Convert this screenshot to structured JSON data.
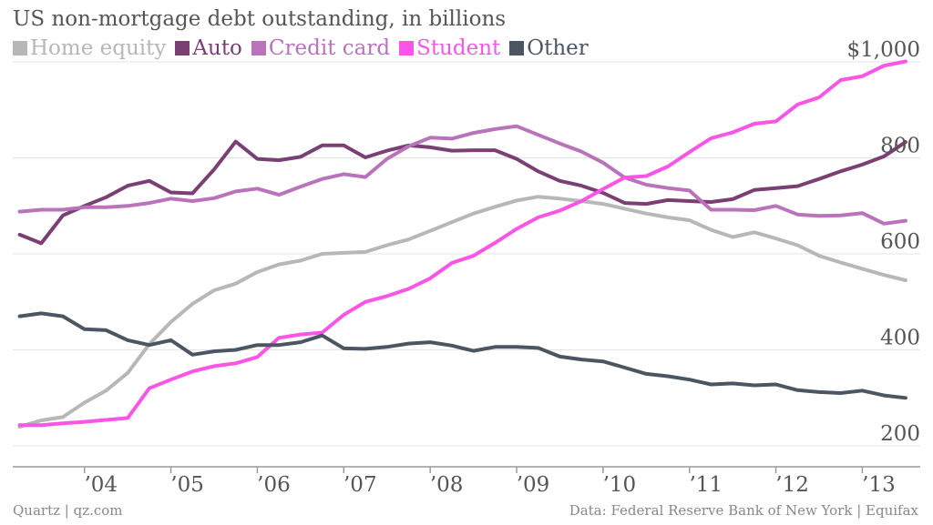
{
  "chart_data": {
    "type": "line",
    "title": "US non-mortgage debt outstanding, in billions",
    "xlabel": "",
    "ylabel": "",
    "x_tick_labels": [
      "’04",
      "’05",
      "’06",
      "’07",
      "’08",
      "’09",
      "’10",
      "’11",
      "’12",
      "’13"
    ],
    "x_tick_positions": [
      2004,
      2005,
      2006,
      2007,
      2008,
      2009,
      2010,
      2011,
      2012,
      2013
    ],
    "y_tick_labels": [
      "200",
      "400",
      "600",
      "800",
      "$1,000"
    ],
    "y_tick_values": [
      200,
      400,
      600,
      800,
      1000
    ],
    "xlim": [
      2003.17,
      2013.67
    ],
    "ylim": [
      170,
      1040
    ],
    "grid": "horizontal",
    "legend": "top-left",
    "x": [
      2003.25,
      2003.5,
      2003.75,
      2004.0,
      2004.25,
      2004.5,
      2004.75,
      2005.0,
      2005.25,
      2005.5,
      2005.75,
      2006.0,
      2006.25,
      2006.5,
      2006.75,
      2007.0,
      2007.25,
      2007.5,
      2007.75,
      2008.0,
      2008.25,
      2008.5,
      2008.75,
      2009.0,
      2009.25,
      2009.5,
      2009.75,
      2010.0,
      2010.25,
      2010.5,
      2010.75,
      2011.0,
      2011.25,
      2011.5,
      2011.75,
      2012.0,
      2012.25,
      2012.5,
      2012.75,
      2013.0,
      2013.25,
      2013.5
    ],
    "series": [
      {
        "name": "Home equity",
        "color": "#b7b7b7",
        "values": [
          240,
          253,
          260,
          290,
          315,
          352,
          412,
          458,
          496,
          524,
          538,
          562,
          578,
          586,
          600,
          602,
          604,
          618,
          630,
          648,
          666,
          684,
          698,
          711,
          719,
          715,
          710,
          704,
          694,
          684,
          676,
          670,
          650,
          635,
          645,
          632,
          618,
          596,
          582,
          569,
          556,
          545
        ]
      },
      {
        "name": "Auto",
        "color": "#7a3f73",
        "values": [
          640,
          622,
          680,
          700,
          718,
          742,
          752,
          728,
          726,
          776,
          834,
          798,
          795,
          802,
          826,
          826,
          801,
          815,
          826,
          822,
          815,
          816,
          816,
          798,
          772,
          752,
          742,
          727,
          706,
          704,
          712,
          710,
          708,
          714,
          733,
          737,
          741,
          756,
          772,
          786,
          803,
          833
        ]
      },
      {
        "name": "Credit card",
        "color": "#b973ba",
        "values": [
          688,
          692,
          692,
          697,
          697,
          700,
          706,
          715,
          710,
          716,
          730,
          736,
          723,
          740,
          756,
          766,
          760,
          798,
          824,
          842,
          840,
          852,
          860,
          866,
          848,
          830,
          813,
          790,
          759,
          744,
          737,
          732,
          692,
          692,
          691,
          700,
          682,
          679,
          680,
          685,
          663,
          669
        ]
      },
      {
        "name": "Student",
        "color": "#fa55e6",
        "values": [
          243,
          243,
          247,
          250,
          254,
          258,
          320,
          338,
          355,
          366,
          372,
          385,
          425,
          432,
          436,
          473,
          500,
          512,
          527,
          549,
          581,
          596,
          623,
          652,
          676,
          690,
          710,
          735,
          759,
          762,
          782,
          812,
          841,
          853,
          871,
          876,
          911,
          926,
          962,
          970,
          992,
          1001
        ]
      },
      {
        "name": "Other",
        "color": "#4c5663",
        "values": [
          470,
          476,
          470,
          443,
          441,
          420,
          410,
          420,
          390,
          397,
          400,
          410,
          410,
          416,
          430,
          403,
          402,
          406,
          413,
          416,
          409,
          398,
          406,
          406,
          404,
          386,
          380,
          376,
          363,
          350,
          345,
          338,
          328,
          330,
          326,
          328,
          316,
          312,
          310,
          315,
          305,
          300
        ]
      }
    ]
  },
  "footer": {
    "source_left": "Quartz | qz.com",
    "source_right": "Data: Federal Reserve Bank of New York | Equifax"
  }
}
